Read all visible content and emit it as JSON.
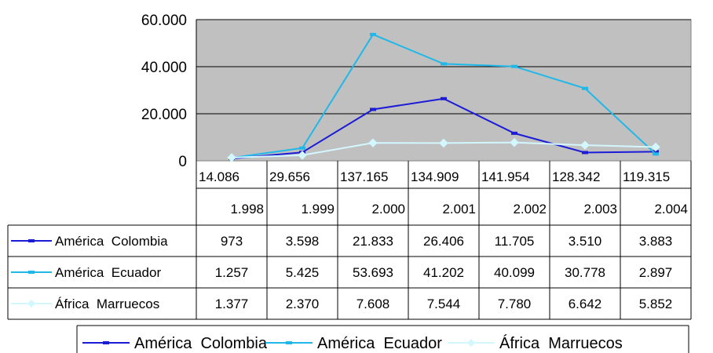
{
  "chart_data": {
    "type": "line",
    "ylim": [
      0,
      60000
    ],
    "yticks": [
      "60.000",
      "40.000",
      "20.000",
      "0"
    ],
    "ytick_values": [
      60000,
      40000,
      20000,
      0
    ],
    "top_row": [
      "14.086",
      "29.656",
      "137.165",
      "134.909",
      "141.954",
      "128.342",
      "119.315"
    ],
    "categories": [
      "1.998",
      "1.999",
      "2.000",
      "2.001",
      "2.002",
      "2.003",
      "2.004"
    ],
    "series": [
      {
        "name": "América  Colombia",
        "values": [
          973,
          3598,
          21833,
          26406,
          11705,
          3510,
          3883
        ],
        "labels": [
          "973",
          "3.598",
          "21.833",
          "26.406",
          "11.705",
          "3.510",
          "3.883"
        ],
        "color": "#1c1cd6",
        "marker": "dash"
      },
      {
        "name": "América  Ecuador",
        "values": [
          1257,
          5425,
          53693,
          41202,
          40099,
          30778,
          2897
        ],
        "labels": [
          "1.257",
          "5.425",
          "53.693",
          "41.202",
          "40.099",
          "30.778",
          "2.897"
        ],
        "color": "#1fb8e8",
        "marker": "dash"
      },
      {
        "name": "África  Marruecos",
        "values": [
          1377,
          2370,
          7608,
          7544,
          7780,
          6642,
          5852
        ],
        "labels": [
          "1.377",
          "2.370",
          "7.608",
          "7.544",
          "7.780",
          "6.642",
          "5.852"
        ],
        "color": "#d3f7ff",
        "marker": "diamond"
      }
    ],
    "grid": true,
    "legend_position": "bottom",
    "plot_background": "#c0c0c0"
  }
}
